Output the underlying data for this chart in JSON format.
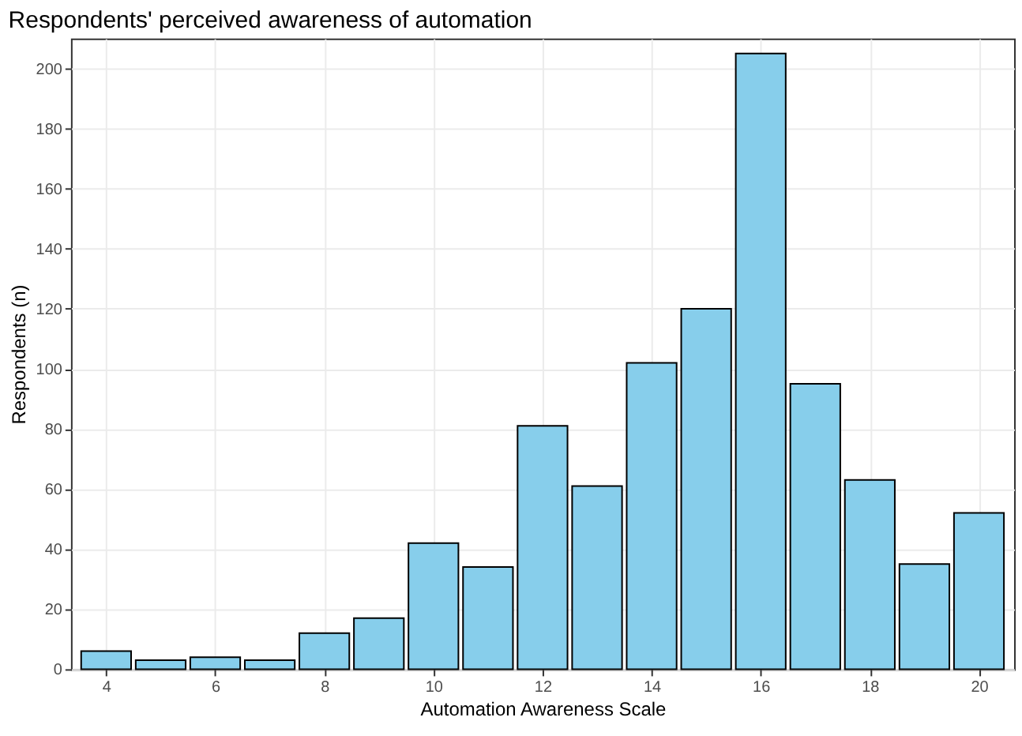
{
  "chart_data": {
    "type": "bar",
    "title": "Respondents' perceived awareness of automation",
    "xlabel": "Automation Awareness Scale",
    "ylabel": "Respondents (n)",
    "x": [
      4,
      5,
      6,
      7,
      8,
      9,
      10,
      11,
      12,
      13,
      14,
      15,
      16,
      17,
      18,
      19,
      20
    ],
    "values": [
      6,
      3,
      4,
      3,
      12,
      17,
      42,
      34,
      81,
      61,
      102,
      120,
      205,
      95,
      63,
      35,
      52
    ],
    "color": "#87ceeb",
    "xlim": [
      3.5,
      20.5
    ],
    "xticks": [
      4,
      6,
      8,
      10,
      12,
      14,
      16,
      18,
      20
    ],
    "ylim": [
      0,
      210
    ],
    "yticks": [
      0,
      20,
      40,
      60,
      80,
      100,
      120,
      140,
      160,
      180,
      200
    ],
    "grid": true
  }
}
